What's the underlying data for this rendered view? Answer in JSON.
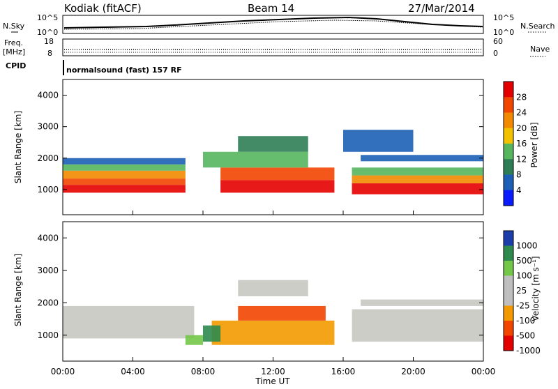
{
  "header": {
    "title": "Kodiak (fitACF)",
    "beam": "Beam 14",
    "date": "27/Mar/2014",
    "cpid_label": "CPID",
    "cpid_value": "normalsound (fast) 157 RF"
  },
  "noise_panel": {
    "left_label": "N.Sky",
    "right_label": "N.Search",
    "left_ticks": [
      "10^5",
      "10^0"
    ],
    "right_ticks": [
      "10^5",
      "10^0"
    ]
  },
  "freq_panel": {
    "left_label_1": "Freq.",
    "left_label_2": "[MHz]",
    "right_label": "Nave",
    "left_ticks": [
      "18",
      "8"
    ],
    "right_ticks": [
      "60",
      "0"
    ]
  },
  "colors": {
    "power_scale": [
      "#0a1cff",
      "#1c5fb5",
      "#2f7d55",
      "#56b65e",
      "#f2c100",
      "#f28a00",
      "#f24500",
      "#e50000"
    ],
    "velocity_scale": [
      "#e50000",
      "#f24500",
      "#f29a00",
      "#bfbfbf",
      "#bfbfbf",
      "#74c749",
      "#2e8a4d",
      "#1c3eaa"
    ]
  },
  "chart_data": [
    {
      "type": "heatmap",
      "name_hint": "power-panel",
      "ylabel": "Slant Range [km]",
      "xlabel": "Time UT",
      "y_ticks": [
        "1000",
        "2000",
        "3000",
        "4000"
      ],
      "x_ticks": [
        "00:00",
        "04:00",
        "08:00",
        "12:00",
        "16:00",
        "20:00",
        "00:00"
      ],
      "ylim": [
        200,
        4500
      ],
      "xlim_hours": [
        0,
        24
      ],
      "colorbar": {
        "label": "Power [dB]",
        "ticks": [
          "4",
          "8",
          "12",
          "16",
          "20",
          "24",
          "28"
        ]
      },
      "bands": [
        {
          "t0": 0,
          "t1": 7,
          "r0": 900,
          "r1": 1150,
          "color": "#e50000"
        },
        {
          "t0": 0,
          "t1": 7,
          "r0": 1150,
          "r1": 1350,
          "color": "#f24500"
        },
        {
          "t0": 0,
          "t1": 7,
          "r0": 1350,
          "r1": 1600,
          "color": "#f28a00"
        },
        {
          "t0": 0,
          "t1": 7,
          "r0": 1600,
          "r1": 1800,
          "color": "#56b65e"
        },
        {
          "t0": 0,
          "t1": 7,
          "r0": 1800,
          "r1": 2000,
          "color": "#1c5fb5"
        },
        {
          "t0": 9,
          "t1": 15.5,
          "r0": 900,
          "r1": 1300,
          "color": "#e50000"
        },
        {
          "t0": 9,
          "t1": 15.5,
          "r0": 1300,
          "r1": 1700,
          "color": "#f24500"
        },
        {
          "t0": 8,
          "t1": 14,
          "r0": 1700,
          "r1": 2200,
          "color": "#56b65e"
        },
        {
          "t0": 10,
          "t1": 14,
          "r0": 2200,
          "r1": 2700,
          "color": "#2f7d55"
        },
        {
          "t0": 16.5,
          "t1": 24,
          "r0": 850,
          "r1": 1200,
          "color": "#e50000"
        },
        {
          "t0": 16.5,
          "t1": 24,
          "r0": 1200,
          "r1": 1450,
          "color": "#f28a00"
        },
        {
          "t0": 16.5,
          "t1": 24,
          "r0": 1450,
          "r1": 1700,
          "color": "#56b65e"
        },
        {
          "t0": 17,
          "t1": 24,
          "r0": 1900,
          "r1": 2100,
          "color": "#1c5fb5"
        },
        {
          "t0": 16,
          "t1": 20,
          "r0": 2200,
          "r1": 2900,
          "color": "#1c5fb5"
        }
      ]
    },
    {
      "type": "heatmap",
      "name_hint": "velocity-panel",
      "ylabel": "Slant Range [km]",
      "xlabel": "Time UT",
      "y_ticks": [
        "1000",
        "2000",
        "3000",
        "4000"
      ],
      "x_ticks": [
        "00:00",
        "04:00",
        "08:00",
        "12:00",
        "16:00",
        "20:00",
        "00:00"
      ],
      "ylim": [
        200,
        4500
      ],
      "xlim_hours": [
        0,
        24
      ],
      "colorbar": {
        "label": "Velocity [m s⁻¹]",
        "ticks": [
          "1000",
          "500",
          "100",
          "25",
          "-25",
          "-100",
          "-500",
          "-1000"
        ]
      },
      "bands": [
        {
          "t0": 0,
          "t1": 7.5,
          "r0": 900,
          "r1": 1900,
          "color": "#c8c8c2"
        },
        {
          "t0": 8.5,
          "t1": 15.5,
          "r0": 700,
          "r1": 1450,
          "color": "#f29a00"
        },
        {
          "t0": 10,
          "t1": 15,
          "r0": 1450,
          "r1": 1900,
          "color": "#f24500"
        },
        {
          "t0": 8,
          "t1": 9,
          "r0": 800,
          "r1": 1300,
          "color": "#2e8a4d"
        },
        {
          "t0": 7,
          "t1": 8,
          "r0": 700,
          "r1": 1000,
          "color": "#74c749"
        },
        {
          "t0": 10,
          "t1": 14,
          "r0": 2200,
          "r1": 2700,
          "color": "#c8c8c2"
        },
        {
          "t0": 16.5,
          "t1": 24,
          "r0": 800,
          "r1": 1800,
          "color": "#c8c8c2"
        },
        {
          "t0": 17,
          "t1": 24,
          "r0": 1900,
          "r1": 2100,
          "color": "#c8c8c2"
        }
      ]
    }
  ]
}
